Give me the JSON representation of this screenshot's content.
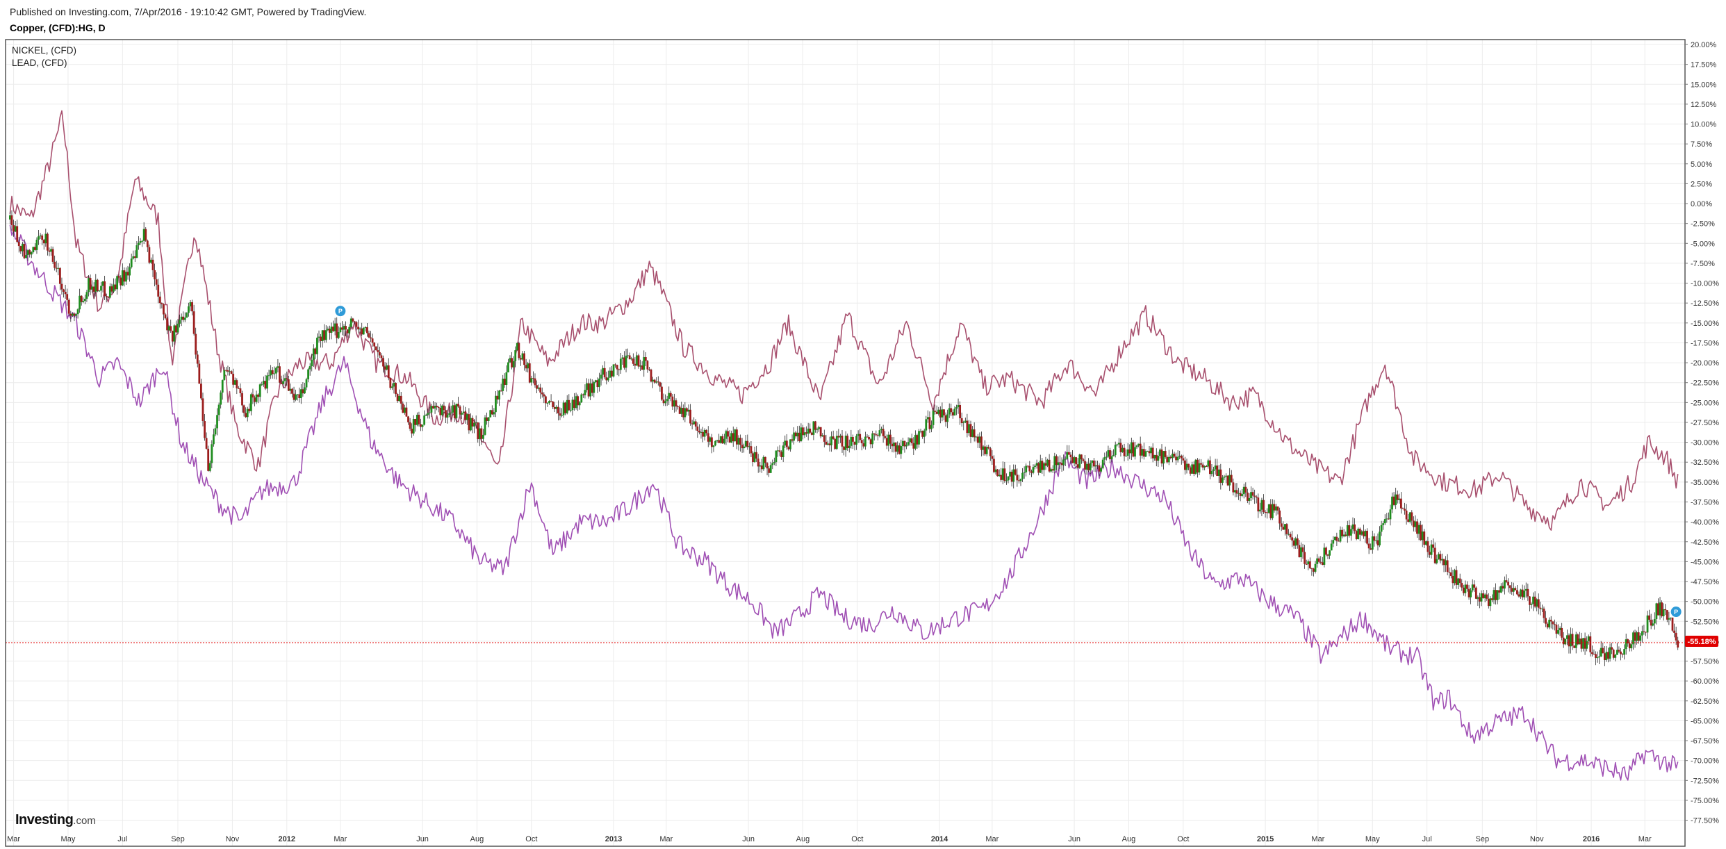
{
  "header": {
    "published": "Published on Investing.com, 7/Apr/2016 - 19:10:42 GMT, Powered by TradingView.",
    "symbol": "Copper, (CFD):HG, D"
  },
  "logo": {
    "bold": "Investing",
    "light": ".com"
  },
  "colors": {
    "up": "#1e8c1e",
    "down": "#9b1c1c",
    "nickel": "#a8506e",
    "lead": "#a050b4",
    "price_line": "#e00000",
    "marker": "#2f9bd8",
    "grid": "#ececec",
    "frame": "#555555"
  },
  "chart_data": {
    "type": "line",
    "legend": [
      "NICKEL,  (CFD)",
      "LEAD,  (CFD)"
    ],
    "legend_placement": "top-left",
    "ylim": [
      -77.5,
      20
    ],
    "y_ticks": [
      "20.00%",
      "17.50%",
      "15.00%",
      "12.50%",
      "10.00%",
      "7.50%",
      "5.00%",
      "2.50%",
      "0.00%",
      "-2.50%",
      "-5.00%",
      "-7.50%",
      "-10.00%",
      "-12.50%",
      "-15.00%",
      "-17.50%",
      "-20.00%",
      "-22.50%",
      "-25.00%",
      "-27.50%",
      "-30.00%",
      "-32.50%",
      "-35.00%",
      "-37.50%",
      "-40.00%",
      "-42.50%",
      "-45.00%",
      "-47.50%",
      "-50.00%",
      "-52.50%",
      "-55.00%",
      "-57.50%",
      "-60.00%",
      "-62.50%",
      "-65.00%",
      "-67.50%",
      "-70.00%",
      "-72.50%",
      "-75.00%",
      "-77.50%"
    ],
    "y_tick_values": [
      20,
      17.5,
      15,
      12.5,
      10,
      7.5,
      5,
      2.5,
      0,
      -2.5,
      -5,
      -7.5,
      -10,
      -12.5,
      -15,
      -17.5,
      -20,
      -22.5,
      -25,
      -27.5,
      -30,
      -32.5,
      -35,
      -37.5,
      -40,
      -42.5,
      -45,
      -47.5,
      -50,
      -52.5,
      -55,
      -57.5,
      -60,
      -62.5,
      -65,
      -67.5,
      -70,
      -72.5,
      -75,
      -77.5
    ],
    "x_ticks": [
      "Mar",
      "May",
      "Jul",
      "Sep",
      "Nov",
      "2012",
      "Mar",
      "Jun",
      "Aug",
      "Oct",
      "2013",
      "Mar",
      "Jun",
      "Aug",
      "Oct",
      "2014",
      "Mar",
      "Jun",
      "Aug",
      "Oct",
      "2015",
      "Mar",
      "May",
      "Jul",
      "Sep",
      "Nov",
      "2016",
      "Mar"
    ],
    "x_tick_values": [
      "2011-03-01",
      "2011-05-01",
      "2011-07-01",
      "2011-09-01",
      "2011-11-01",
      "2012-01-01",
      "2012-03-01",
      "2012-06-01",
      "2012-08-01",
      "2012-10-01",
      "2013-01-01",
      "2013-03-01",
      "2013-06-01",
      "2013-08-01",
      "2013-10-01",
      "2014-01-01",
      "2014-03-01",
      "2014-06-01",
      "2014-08-01",
      "2014-10-01",
      "2015-01-01",
      "2015-03-01",
      "2015-05-01",
      "2015-07-01",
      "2015-09-01",
      "2015-11-01",
      "2016-01-01",
      "2016-03-01"
    ],
    "x_range": [
      "2011-02-20",
      "2016-04-15"
    ],
    "x_major_ticks": [
      "2012",
      "2013",
      "2014",
      "2015",
      "2016"
    ],
    "last_value_label": "-55.18%",
    "last_value": -55.18,
    "series": [
      {
        "name": "NICKEL,  (CFD)",
        "style": "line",
        "x": [
          "2011-02-25",
          "2011-03-20",
          "2011-04-10",
          "2011-04-25",
          "2011-05-10",
          "2011-06-05",
          "2011-06-25",
          "2011-07-15",
          "2011-08-10",
          "2011-08-25",
          "2011-09-20",
          "2011-10-15",
          "2011-11-05",
          "2011-11-30",
          "2011-12-20",
          "2012-01-15",
          "2012-02-20",
          "2012-03-15",
          "2012-04-10",
          "2012-05-15",
          "2012-06-15",
          "2012-07-10",
          "2012-08-10",
          "2012-08-25",
          "2012-09-20",
          "2012-10-20",
          "2012-11-25",
          "2012-12-20",
          "2013-01-20",
          "2013-02-10",
          "2013-02-20",
          "2013-03-20",
          "2013-04-25",
          "2013-05-25",
          "2013-06-25",
          "2013-07-15",
          "2013-08-20",
          "2013-09-20",
          "2013-10-25",
          "2013-11-25",
          "2013-12-25",
          "2014-01-25",
          "2014-02-20",
          "2014-03-20",
          "2014-04-25",
          "2014-05-25",
          "2014-06-25",
          "2014-07-25",
          "2014-08-20",
          "2014-09-25",
          "2014-10-25",
          "2014-11-25",
          "2014-12-20",
          "2015-01-25",
          "2015-02-25",
          "2015-03-25",
          "2015-04-25",
          "2015-05-15",
          "2015-06-15",
          "2015-07-20",
          "2015-08-25",
          "2015-09-20",
          "2015-10-20",
          "2015-11-20",
          "2015-12-20",
          "2016-01-20",
          "2016-02-15",
          "2016-03-05",
          "2016-03-25",
          "2016-04-07"
        ],
        "values": [
          0,
          -2,
          5,
          11,
          -5,
          -13,
          -10,
          3,
          -2,
          -20,
          -3,
          -18,
          -28,
          -33,
          -24,
          -20,
          -20,
          -15,
          -20,
          -22,
          -27,
          -26,
          -30,
          -34,
          -15,
          -20,
          -15,
          -15,
          -12,
          -8,
          -10,
          -18,
          -22,
          -24,
          -20,
          -15,
          -25,
          -14,
          -23,
          -15,
          -25,
          -15,
          -23,
          -22,
          -25,
          -20,
          -24,
          -18,
          -14,
          -20,
          -22,
          -25,
          -24,
          -30,
          -33,
          -35,
          -25,
          -20,
          -32,
          -35,
          -36,
          -34,
          -38,
          -40,
          -35,
          -38,
          -35,
          -30,
          -32,
          -35
        ]
      },
      {
        "name": "LEAD,  (CFD)",
        "style": "line",
        "x": [
          "2011-02-25",
          "2011-03-25",
          "2011-04-20",
          "2011-05-10",
          "2011-06-05",
          "2011-06-25",
          "2011-07-20",
          "2011-08-15",
          "2011-09-05",
          "2011-09-30",
          "2011-10-20",
          "2011-11-10",
          "2011-12-05",
          "2012-01-10",
          "2012-02-10",
          "2012-03-05",
          "2012-04-05",
          "2012-05-05",
          "2012-06-10",
          "2012-07-05",
          "2012-08-05",
          "2012-09-01",
          "2012-09-30",
          "2012-10-25",
          "2012-11-25",
          "2012-12-25",
          "2013-01-20",
          "2013-02-15",
          "2013-03-15",
          "2013-04-15",
          "2013-05-10",
          "2013-06-05",
          "2013-07-01",
          "2013-07-25",
          "2013-08-20",
          "2013-09-15",
          "2013-10-15",
          "2013-11-10",
          "2013-12-15",
          "2014-01-20",
          "2014-02-20",
          "2014-03-20",
          "2014-04-20",
          "2014-05-20",
          "2014-06-15",
          "2014-07-15",
          "2014-08-10",
          "2014-09-10",
          "2014-10-10",
          "2014-11-05",
          "2014-12-05",
          "2015-01-05",
          "2015-02-05",
          "2015-03-05",
          "2015-04-01",
          "2015-04-20",
          "2015-05-20",
          "2015-06-20",
          "2015-07-10",
          "2015-07-25",
          "2015-08-20",
          "2015-09-20",
          "2015-10-20",
          "2015-11-10",
          "2015-11-25",
          "2015-12-25",
          "2016-01-20",
          "2016-02-10",
          "2016-03-01",
          "2016-03-20",
          "2016-04-07"
        ],
        "values": [
          -3,
          -8,
          -12,
          -15,
          -22,
          -20,
          -25,
          -20,
          -30,
          -35,
          -38,
          -40,
          -36,
          -35,
          -25,
          -20,
          -30,
          -35,
          -38,
          -40,
          -45,
          -46,
          -35,
          -44,
          -40,
          -40,
          -38,
          -35,
          -43,
          -45,
          -48,
          -50,
          -54,
          -52,
          -49,
          -52,
          -53,
          -51,
          -54,
          -52,
          -51,
          -47,
          -40,
          -32,
          -35,
          -33,
          -35,
          -37,
          -44,
          -48,
          -47,
          -50,
          -52,
          -57,
          -54,
          -52,
          -56,
          -57,
          -63,
          -62,
          -67,
          -65,
          -64,
          -68,
          -70,
          -70,
          -71,
          -72,
          -69,
          -70,
          -71
        ]
      },
      {
        "name": "",
        "style": "candles",
        "x": [
          "2011-02-25",
          "2011-03-15",
          "2011-04-05",
          "2011-04-20",
          "2011-05-05",
          "2011-05-25",
          "2011-06-15",
          "2011-07-10",
          "2011-07-25",
          "2011-08-10",
          "2011-08-25",
          "2011-09-15",
          "2011-10-05",
          "2011-10-25",
          "2011-11-15",
          "2011-12-05",
          "2011-12-20",
          "2012-01-15",
          "2012-02-05",
          "2012-02-25",
          "2012-03-15",
          "2012-04-05",
          "2012-04-25",
          "2012-05-20",
          "2012-06-15",
          "2012-07-10",
          "2012-08-05",
          "2012-08-25",
          "2012-09-15",
          "2012-10-01",
          "2012-10-25",
          "2012-11-20",
          "2012-12-15",
          "2013-01-10",
          "2013-02-05",
          "2013-02-25",
          "2013-03-20",
          "2013-04-20",
          "2013-05-15",
          "2013-06-10",
          "2013-06-25",
          "2013-07-15",
          "2013-08-10",
          "2013-09-05",
          "2013-10-01",
          "2013-10-25",
          "2013-11-25",
          "2013-12-25",
          "2014-01-20",
          "2014-02-15",
          "2014-03-10",
          "2014-04-05",
          "2014-05-01",
          "2014-05-25",
          "2014-06-25",
          "2014-07-20",
          "2014-08-15",
          "2014-09-10",
          "2014-10-05",
          "2014-11-01",
          "2014-12-01",
          "2014-12-25",
          "2015-01-15",
          "2015-02-05",
          "2015-02-25",
          "2015-03-20",
          "2015-04-10",
          "2015-05-05",
          "2015-05-25",
          "2015-06-20",
          "2015-07-15",
          "2015-08-10",
          "2015-09-05",
          "2015-09-25",
          "2015-10-20",
          "2015-11-10",
          "2015-12-05",
          "2015-12-25",
          "2016-01-15",
          "2016-02-05",
          "2016-02-25",
          "2016-03-15",
          "2016-03-25",
          "2016-04-07"
        ],
        "values": [
          -2,
          -7,
          -4,
          -9,
          -14,
          -10,
          -11,
          -8,
          -4,
          -11,
          -17,
          -12,
          -33,
          -20,
          -26,
          -23,
          -21,
          -25,
          -17,
          -16,
          -15,
          -17,
          -22,
          -28,
          -26,
          -26,
          -29,
          -24,
          -18,
          -22,
          -26,
          -25,
          -22,
          -20,
          -20,
          -24,
          -26,
          -30,
          -29,
          -32,
          -33,
          -30,
          -28,
          -30,
          -30,
          -29,
          -31,
          -27,
          -26,
          -30,
          -34,
          -34,
          -33,
          -32,
          -33,
          -31,
          -31,
          -32,
          -33,
          -33,
          -36,
          -38,
          -39,
          -43,
          -46,
          -42,
          -41,
          -43,
          -37,
          -41,
          -45,
          -48,
          -50,
          -48,
          -49,
          -52,
          -55,
          -55,
          -57,
          -56,
          -54,
          -51,
          -51,
          -55.18
        ]
      }
    ],
    "markers": [
      {
        "label": "P",
        "x": "2012-03-01",
        "y": -13.5
      },
      {
        "label": "P",
        "x": "2016-04-05",
        "y": -51.3
      }
    ]
  }
}
